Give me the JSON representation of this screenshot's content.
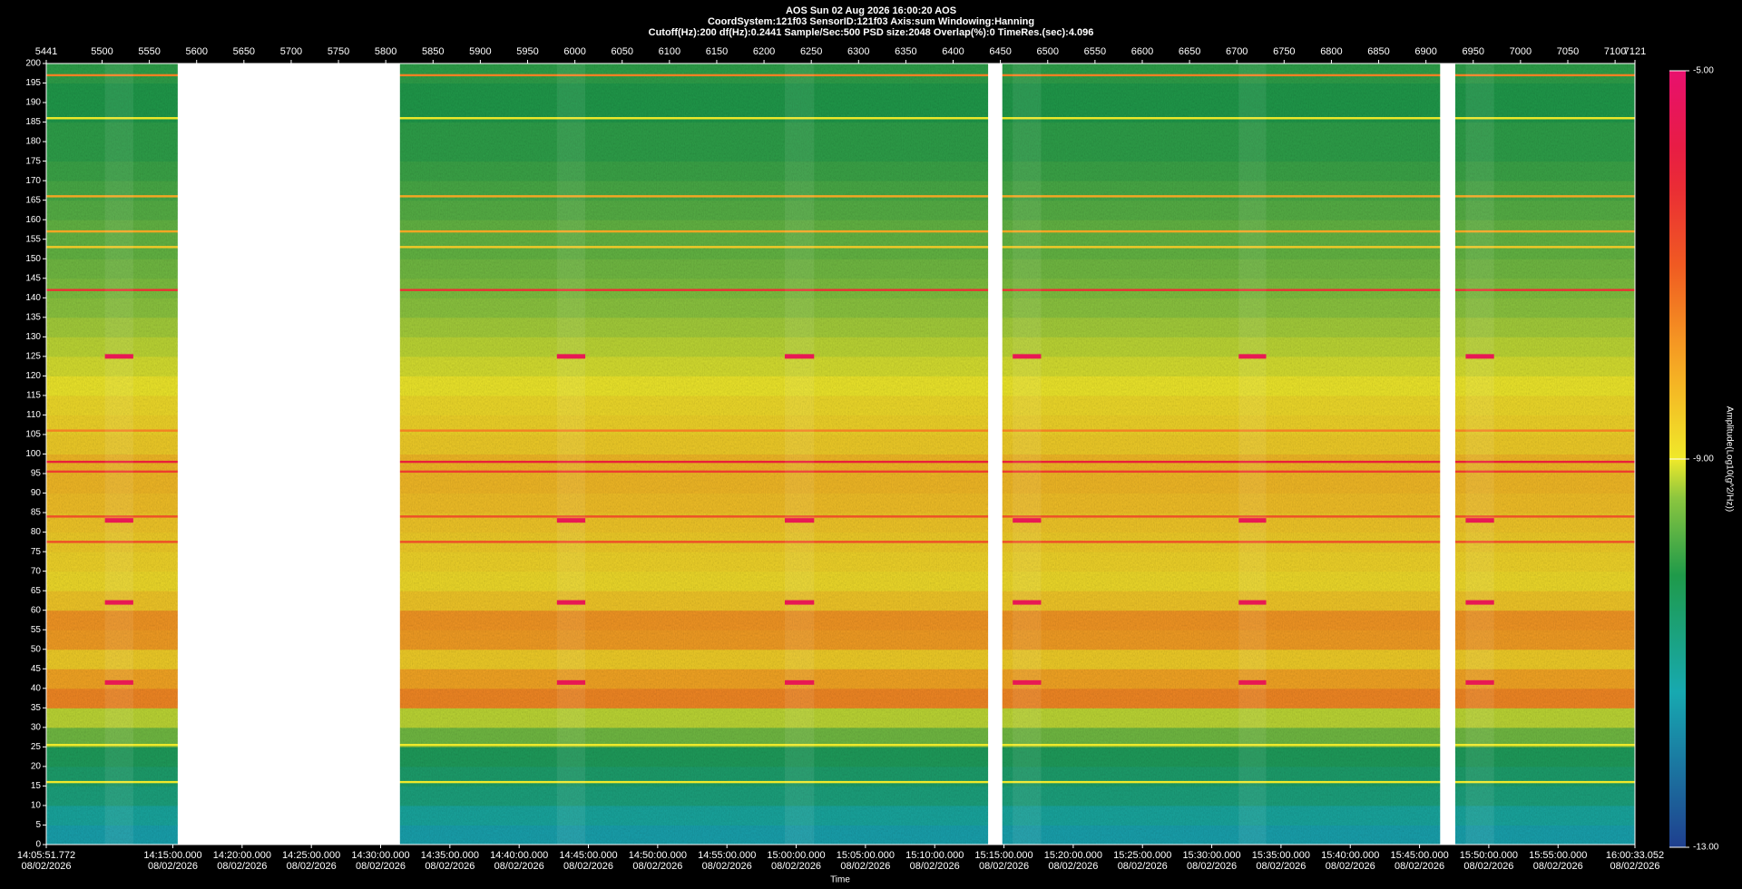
{
  "chart_data": {
    "type": "heatmap",
    "title": "AOS  Sun 02 Aug 2026 16:00:20  AOS",
    "subtitle": [
      "CoordSystem:121f03   SensorID:121f03   Axis:sum   Windowing:Hanning",
      "Cutoff(Hz):200   df(Hz):0.2441   Sample/Sec:500   PSD size:2048   Overlap(%):0   TimeRes.(sec):4.096"
    ],
    "xlabel": "Time",
    "colorbar_label": "Amplitude(Log10(g^2/Hz))",
    "xlim": [
      5441,
      7121
    ],
    "xticks": [
      5441,
      5500,
      5550,
      5600,
      5650,
      5700,
      5750,
      5800,
      5850,
      5900,
      5950,
      6000,
      6050,
      6100,
      6150,
      6200,
      6250,
      6300,
      6350,
      6400,
      6450,
      6500,
      6550,
      6600,
      6650,
      6700,
      6750,
      6800,
      6850,
      6900,
      6950,
      7000,
      7050,
      7100,
      7121
    ],
    "timelim": [
      "2026-08-02T14:05:51.772",
      "2026-08-02T16:00:33.052"
    ],
    "timeticks": [
      {
        "value": "2026-08-02T14:05:51.772",
        "label": [
          "14:05:51.772",
          "08/02/2026"
        ]
      },
      {
        "value": "2026-08-02T14:15:00.000",
        "label": [
          "14:15:00.000",
          "08/02/2026"
        ]
      },
      {
        "value": "2026-08-02T14:20:00.000",
        "label": [
          "14:20:00.000",
          "08/02/2026"
        ]
      },
      {
        "value": "2026-08-02T14:25:00.000",
        "label": [
          "14:25:00.000",
          "08/02/2026"
        ]
      },
      {
        "value": "2026-08-02T14:30:00.000",
        "label": [
          "14:30:00.000",
          "08/02/2026"
        ]
      },
      {
        "value": "2026-08-02T14:35:00.000",
        "label": [
          "14:35:00.000",
          "08/02/2026"
        ]
      },
      {
        "value": "2026-08-02T14:40:00.000",
        "label": [
          "14:40:00.000",
          "08/02/2026"
        ]
      },
      {
        "value": "2026-08-02T14:45:00.000",
        "label": [
          "14:45:00.000",
          "08/02/2026"
        ]
      },
      {
        "value": "2026-08-02T14:50:00.000",
        "label": [
          "14:50:00.000",
          "08/02/2026"
        ]
      },
      {
        "value": "2026-08-02T14:55:00.000",
        "label": [
          "14:55:00.000",
          "08/02/2026"
        ]
      },
      {
        "value": "2026-08-02T15:00:00.000",
        "label": [
          "15:00:00.000",
          "08/02/2026"
        ]
      },
      {
        "value": "2026-08-02T15:05:00.000",
        "label": [
          "15:05:00.000",
          "08/02/2026"
        ]
      },
      {
        "value": "2026-08-02T15:10:00.000",
        "label": [
          "15:10:00.000",
          "08/02/2026"
        ]
      },
      {
        "value": "2026-08-02T15:15:00.000",
        "label": [
          "15:15:00.000",
          "08/02/2026"
        ]
      },
      {
        "value": "2026-08-02T15:20:00.000",
        "label": [
          "15:20:00.000",
          "08/02/2026"
        ]
      },
      {
        "value": "2026-08-02T15:25:00.000",
        "label": [
          "15:25:00.000",
          "08/02/2026"
        ]
      },
      {
        "value": "2026-08-02T15:30:00.000",
        "label": [
          "15:30:00.000",
          "08/02/2026"
        ]
      },
      {
        "value": "2026-08-02T15:35:00.000",
        "label": [
          "15:35:00.000",
          "08/02/2026"
        ]
      },
      {
        "value": "2026-08-02T15:40:00.000",
        "label": [
          "15:40:00.000",
          "08/02/2026"
        ]
      },
      {
        "value": "2026-08-02T15:45:00.000",
        "label": [
          "15:45:00.000",
          "08/02/2026"
        ]
      },
      {
        "value": "2026-08-02T15:50:00.000",
        "label": [
          "15:50:00.000",
          "08/02/2026"
        ]
      },
      {
        "value": "2026-08-02T15:55:00.000",
        "label": [
          "15:55:00.000",
          "08/02/2026"
        ]
      },
      {
        "value": "2026-08-02T16:00:33.052",
        "label": [
          "16:00:33.052",
          "08/02/2026"
        ]
      }
    ],
    "ylim": [
      0,
      200
    ],
    "yticks": [
      0,
      5,
      10,
      15,
      20,
      25,
      30,
      35,
      40,
      45,
      50,
      55,
      60,
      65,
      70,
      75,
      80,
      85,
      90,
      95,
      100,
      105,
      110,
      115,
      120,
      125,
      130,
      135,
      140,
      145,
      150,
      155,
      160,
      165,
      170,
      175,
      180,
      185,
      190,
      195,
      200
    ],
    "clim": [
      -13,
      -5
    ],
    "cticks": [
      {
        "value": -13,
        "label": "-13.00"
      },
      {
        "value": -9,
        "label": "-9.00"
      },
      {
        "value": -5,
        "label": "-5.00"
      }
    ],
    "y_bins": [
      0,
      5,
      10,
      15,
      20,
      25,
      30,
      35,
      40,
      45,
      50,
      55,
      60,
      65,
      70,
      75,
      80,
      85,
      90,
      95,
      100,
      105,
      110,
      115,
      120,
      125,
      130,
      135,
      140,
      145,
      150,
      155,
      160,
      165,
      170,
      175,
      180,
      185,
      190,
      195,
      200
    ],
    "values": [
      -11.5,
      -11.2,
      -10.8,
      -10.6,
      -10.4,
      -9.6,
      -9.2,
      -7.6,
      -8.0,
      -8.6,
      -7.9,
      -7.8,
      -8.5,
      -8.8,
      -8.7,
      -8.6,
      -8.5,
      -8.4,
      -8.3,
      -8.3,
      -8.6,
      -8.7,
      -8.8,
      -9.0,
      -9.1,
      -9.2,
      -9.3,
      -9.4,
      -9.5,
      -9.6,
      -9.7,
      -9.7,
      -9.8,
      -9.9,
      -10.0,
      -10.1,
      -10.1,
      -10.2,
      -10.2,
      -10.1
    ],
    "lines": [
      {
        "y": 197,
        "value": -7.5
      },
      {
        "y": 186,
        "value": -9.0
      },
      {
        "y": 166,
        "value": -8.0
      },
      {
        "y": 157,
        "value": -8.0
      },
      {
        "y": 153,
        "value": -8.5
      },
      {
        "y": 142,
        "value": -6.3
      },
      {
        "y": 106,
        "value": -7.5
      },
      {
        "y": 98,
        "value": -6.0
      },
      {
        "y": 95.5,
        "value": -6.5
      },
      {
        "y": 84,
        "value": -6.8
      },
      {
        "y": 77.5,
        "value": -6.8
      },
      {
        "y": 25.5,
        "value": -9.0
      },
      {
        "y": 16,
        "value": -9.0
      }
    ],
    "events": [
      [
        5503,
        5533
      ],
      [
        5981,
        6011
      ],
      [
        6222,
        6253
      ],
      [
        6463,
        6493
      ],
      [
        6702,
        6731
      ],
      [
        6942,
        6972
      ]
    ],
    "event_freqs": [
      125,
      83,
      62,
      41.5
    ],
    "event_value": -5.5,
    "gaps": [
      [
        5580,
        5815
      ],
      [
        6437,
        6452
      ],
      [
        6915,
        6931
      ]
    ]
  }
}
